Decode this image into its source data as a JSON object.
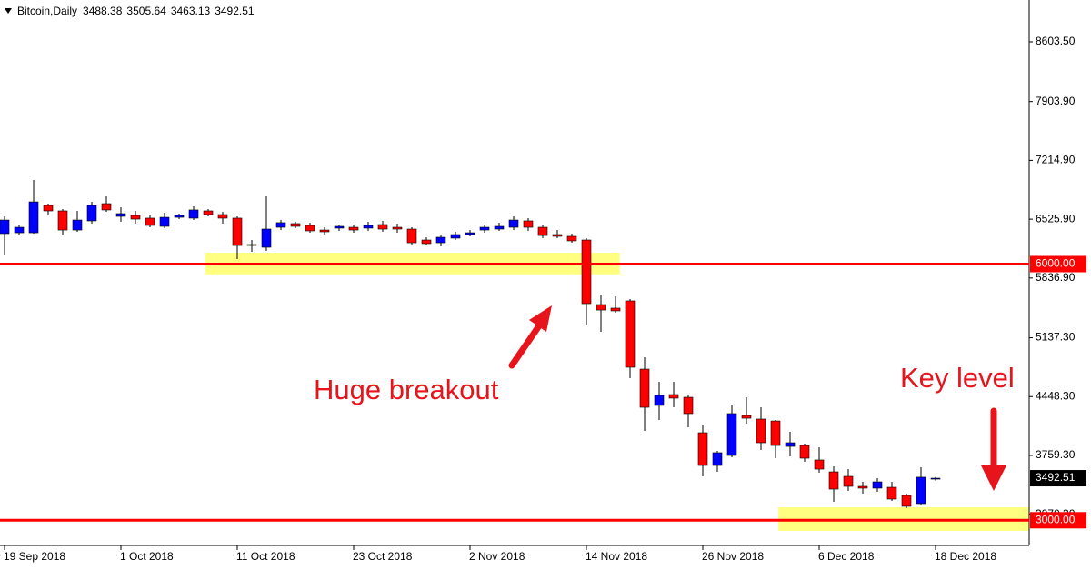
{
  "chart_data": {
    "type": "candlestick",
    "title": "Bitcoin,Daily",
    "categories": [
      "19 Sep 2018",
      null,
      null,
      null,
      null,
      null,
      null,
      null,
      "1 Oct 2018",
      null,
      null,
      null,
      null,
      null,
      null,
      null,
      "11 Oct 2018",
      null,
      null,
      null,
      null,
      null,
      null,
      null,
      "23 Oct 2018",
      null,
      null,
      null,
      null,
      null,
      null,
      null,
      "2 Nov 2018",
      null,
      null,
      null,
      null,
      null,
      null,
      null,
      "14 Nov 2018",
      null,
      null,
      null,
      null,
      null,
      null,
      null,
      "26 Nov 2018",
      null,
      null,
      null,
      null,
      null,
      null,
      null,
      "6 Dec 2018",
      null,
      null,
      null,
      null,
      null,
      null,
      null,
      "18 Dec 2018"
    ],
    "open": [
      6357,
      6367,
      6367,
      6687,
      6623,
      6399,
      6506,
      6708,
      6559,
      6570,
      6538,
      6442,
      6548,
      6538,
      6623,
      6580,
      6538,
      6229,
      6197,
      6431,
      6474,
      6453,
      6399,
      6421,
      6431,
      6421,
      6463,
      6431,
      6410,
      6282,
      6250,
      6304,
      6346,
      6399,
      6410,
      6431,
      6506,
      6431,
      6346,
      6325,
      6282,
      5526,
      5484,
      5569,
      4770,
      4345,
      4472,
      4440,
      4025,
      3642,
      3759,
      4227,
      4185,
      4163,
      3865,
      3876,
      3706,
      3567,
      3514,
      3397,
      3376,
      3386,
      3291,
      3195,
      3488.38
    ],
    "high": [
      6559,
      6453,
      6985,
      6708,
      6644,
      6623,
      6729,
      6793,
      6666,
      6623,
      6580,
      6602,
      6591,
      6676,
      6644,
      6612,
      6559,
      6282,
      6793,
      6516,
      6495,
      6485,
      6431,
      6463,
      6463,
      6495,
      6506,
      6474,
      6431,
      6314,
      6346,
      6378,
      6399,
      6463,
      6485,
      6559,
      6538,
      6453,
      6399,
      6357,
      6304,
      5643,
      5622,
      5590,
      4909,
      4621,
      4621,
      4472,
      4110,
      3812,
      4355,
      4440,
      4323,
      4174,
      4036,
      3897,
      3855,
      3631,
      3599,
      3450,
      3493,
      3450,
      3312,
      3621,
      3505.64
    ],
    "low": [
      6112,
      6346,
      6357,
      6580,
      6335,
      6378,
      6474,
      6612,
      6495,
      6474,
      6431,
      6421,
      6527,
      6516,
      6559,
      6474,
      6059,
      6144,
      6154,
      6399,
      6421,
      6367,
      6346,
      6389,
      6367,
      6389,
      6378,
      6367,
      6218,
      6218,
      6208,
      6282,
      6325,
      6367,
      6389,
      6399,
      6389,
      6304,
      6304,
      6250,
      5281,
      5207,
      5430,
      4664,
      4046,
      4174,
      4323,
      4089,
      3514,
      3567,
      3738,
      4132,
      3823,
      3727,
      3748,
      3684,
      3557,
      3216,
      3344,
      3312,
      3333,
      3227,
      3142,
      3174,
      3463.13
    ],
    "close": [
      6516,
      6431,
      6729,
      6623,
      6399,
      6516,
      6687,
      6634,
      6591,
      6527,
      6453,
      6548,
      6570,
      6634,
      6580,
      6538,
      6218,
      6218,
      6410,
      6485,
      6442,
      6389,
      6378,
      6442,
      6399,
      6453,
      6410,
      6410,
      6250,
      6240,
      6314,
      6346,
      6367,
      6431,
      6442,
      6516,
      6431,
      6335,
      6325,
      6272,
      5537,
      5462,
      5452,
      4792,
      4323,
      4462,
      4430,
      4249,
      3642,
      3791,
      4249,
      4195,
      3908,
      3876,
      3908,
      3727,
      3599,
      3365,
      3397,
      3376,
      3450,
      3248,
      3163,
      3504,
      3492.51
    ],
    "up_color": "#0000ff",
    "down_color": "#ff0000",
    "ylim": [
      2705,
      9093
    ],
    "yticks": [
      {
        "value": 8603.5,
        "label": "8603.50"
      },
      {
        "value": 7903.9,
        "label": "7903.90"
      },
      {
        "value": 7214.9,
        "label": "7214.90"
      },
      {
        "value": 6525.9,
        "label": "6525.90"
      },
      {
        "value": 5836.9,
        "label": "5836.90"
      },
      {
        "value": 5137.3,
        "label": "5137.30"
      },
      {
        "value": 4448.3,
        "label": "4448.30"
      },
      {
        "value": 3759.3,
        "label": "3759.30"
      },
      {
        "value": 3070.3,
        "label": "3070.30"
      }
    ],
    "hlines": [
      {
        "value": 6000,
        "label": "6000.00",
        "color": "#ff0000"
      },
      {
        "value": 3000,
        "label": "3000.00",
        "color": "#ff0000"
      }
    ],
    "zones": [
      {
        "x": [
          13.8,
          42.3
        ],
        "y": [
          5880,
          6133
        ],
        "color": "#ffff80"
      },
      {
        "x": [
          53.2,
          70.4
        ],
        "y": [
          2875,
          3152
        ],
        "color": "#ffff80"
      }
    ],
    "annotations": [
      "Huge breakout",
      "Key level"
    ]
  }
}
